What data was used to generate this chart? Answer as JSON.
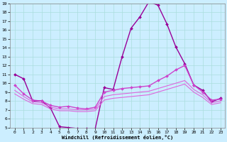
{
  "xlabel": "Windchill (Refroidissement éolien,°C)",
  "background_color": "#cceeff",
  "grid_color": "#aadddd",
  "xlim": [
    -0.5,
    23.5
  ],
  "ylim": [
    5,
    19
  ],
  "yticks": [
    5,
    6,
    7,
    8,
    9,
    10,
    11,
    12,
    13,
    14,
    15,
    16,
    17,
    18,
    19
  ],
  "xticks": [
    0,
    1,
    2,
    3,
    4,
    5,
    6,
    7,
    8,
    9,
    10,
    11,
    12,
    13,
    14,
    15,
    16,
    17,
    18,
    19,
    20,
    21,
    22,
    23
  ],
  "series": [
    {
      "x": [
        0,
        1,
        2,
        3,
        4,
        5,
        6,
        7,
        8,
        9,
        10,
        11,
        12,
        13,
        14,
        15,
        16,
        17,
        18,
        19,
        20,
        21,
        22,
        23
      ],
      "y": [
        11,
        10.5,
        8,
        8,
        7.2,
        5.1,
        5.0,
        4.9,
        4.9,
        4.9,
        9.5,
        9.3,
        13,
        16.2,
        17.5,
        19.2,
        18.8,
        16.7,
        14.1,
        12.2,
        9.8,
        9.2,
        7.9,
        8.3
      ],
      "color": "#990099",
      "lw": 1.0,
      "marker": "D",
      "ms": 2.0
    },
    {
      "x": [
        0,
        1,
        2,
        3,
        4,
        5,
        6,
        7,
        8,
        9,
        10,
        11,
        12,
        13,
        14,
        15,
        16,
        17,
        18,
        19,
        20,
        21,
        22,
        23
      ],
      "y": [
        9.8,
        8.8,
        8.1,
        8.0,
        7.5,
        7.3,
        7.4,
        7.2,
        7.1,
        7.3,
        9.0,
        9.2,
        9.4,
        9.5,
        9.6,
        9.7,
        10.3,
        10.8,
        11.5,
        12.0,
        9.8,
        9.0,
        8.1,
        8.2
      ],
      "color": "#cc44cc",
      "lw": 1.0,
      "marker": "D",
      "ms": 2.0
    },
    {
      "x": [
        0,
        1,
        2,
        3,
        4,
        5,
        6,
        7,
        8,
        9,
        10,
        11,
        12,
        13,
        14,
        15,
        16,
        17,
        18,
        19,
        20,
        21,
        22,
        23
      ],
      "y": [
        9.2,
        8.5,
        7.9,
        7.8,
        7.3,
        7.1,
        7.1,
        7.0,
        7.0,
        7.1,
        8.5,
        8.7,
        8.8,
        8.9,
        9.0,
        9.1,
        9.4,
        9.7,
        10.0,
        10.3,
        9.3,
        8.7,
        7.8,
        8.0
      ],
      "color": "#dd66dd",
      "lw": 0.8,
      "marker": null,
      "ms": 0
    },
    {
      "x": [
        0,
        1,
        2,
        3,
        4,
        5,
        6,
        7,
        8,
        9,
        10,
        11,
        12,
        13,
        14,
        15,
        16,
        17,
        18,
        19,
        20,
        21,
        22,
        23
      ],
      "y": [
        8.8,
        8.2,
        7.7,
        7.6,
        7.1,
        6.9,
        6.9,
        6.8,
        6.8,
        6.9,
        8.1,
        8.3,
        8.4,
        8.5,
        8.6,
        8.7,
        9.0,
        9.3,
        9.6,
        9.9,
        9.0,
        8.4,
        7.6,
        7.8
      ],
      "color": "#dd66dd",
      "lw": 0.8,
      "marker": null,
      "ms": 0
    }
  ]
}
